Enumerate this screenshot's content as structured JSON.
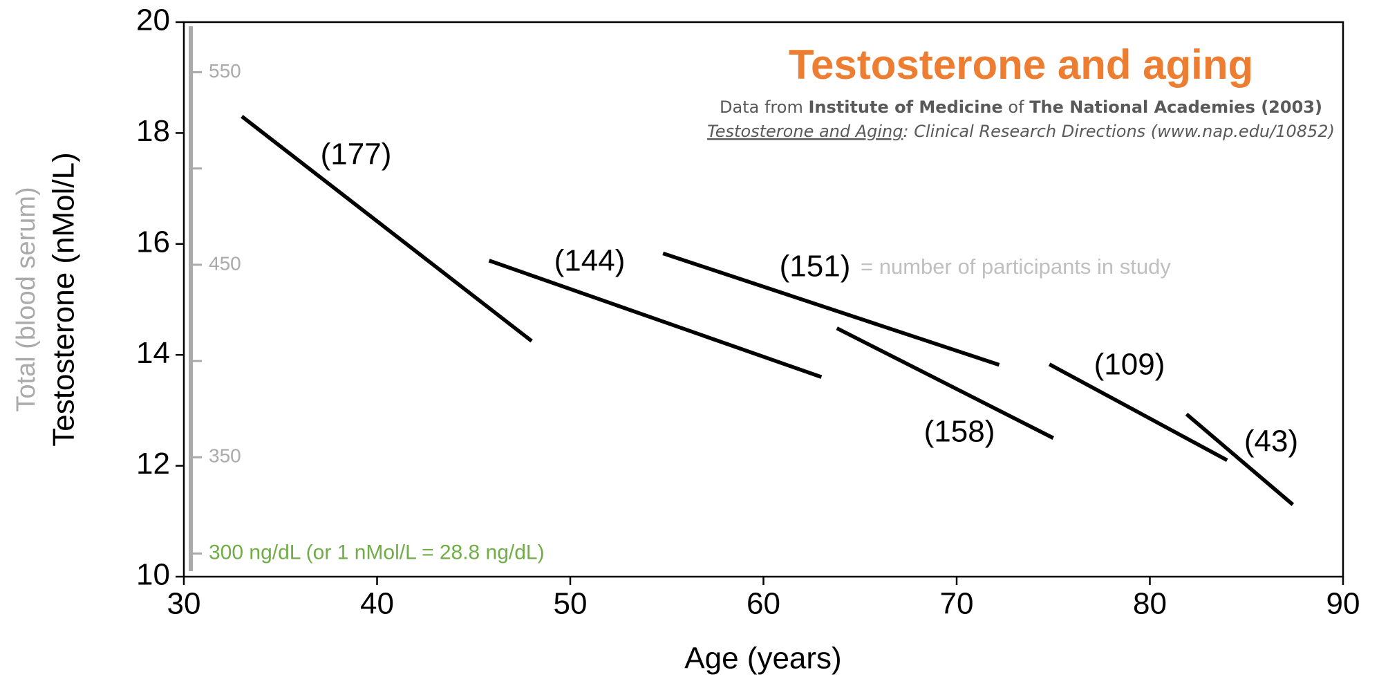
{
  "chart_data": {
    "type": "line",
    "title": "Testosterone and aging",
    "title_color": "#ed7d31",
    "source_parts": [
      "Data from ",
      "Institute of Medicine",
      " of ",
      "The National Academies (2003)"
    ],
    "reference_parts": [
      "Testosterone and Aging",
      ": Clinical Research Directions (www.nap.edu/10852)"
    ],
    "annotation": "= number of participants in study",
    "x_label": "Age (years)",
    "y_label": "Testosterone (nMol/L)",
    "y2_label": "Total (blood serum)",
    "xlim": [
      30,
      90
    ],
    "xticks": [
      30,
      40,
      50,
      60,
      70,
      80,
      90
    ],
    "ylim": [
      10,
      20
    ],
    "yticks": [
      10,
      12,
      14,
      16,
      18,
      20
    ],
    "y2lim": [
      288,
      576
    ],
    "y2ticks": [
      550,
      450,
      350,
      {
        "value": 300,
        "label": "300 ng/dL (or 1 nMol/L = 28.8 ng/dL)"
      }
    ],
    "y2minor_ticks": [
      500,
      400
    ],
    "y2_color": "#aaaaaa",
    "y2_last_label_color": "#70ad47",
    "series": [
      {
        "name": "(177)",
        "color": "#000000",
        "x": [
          33,
          48
        ],
        "values": [
          18.3,
          14.25
        ]
      },
      {
        "name": "(144)",
        "color": "#000000",
        "x": [
          45.8,
          63
        ],
        "values": [
          15.7,
          13.6
        ]
      },
      {
        "name": "(151)",
        "color": "#000000",
        "x": [
          54.8,
          72.2
        ],
        "values": [
          15.83,
          13.82
        ]
      },
      {
        "name": "(158)",
        "color": "#000000",
        "x": [
          63.8,
          75
        ],
        "values": [
          14.48,
          12.5
        ]
      },
      {
        "name": "(109)",
        "color": "#000000",
        "x": [
          74.8,
          84
        ],
        "values": [
          13.83,
          12.1
        ]
      },
      {
        "name": "(43)",
        "color": "#000000",
        "x": [
          81.9,
          87.4
        ],
        "values": [
          12.93,
          11.3
        ]
      }
    ]
  }
}
